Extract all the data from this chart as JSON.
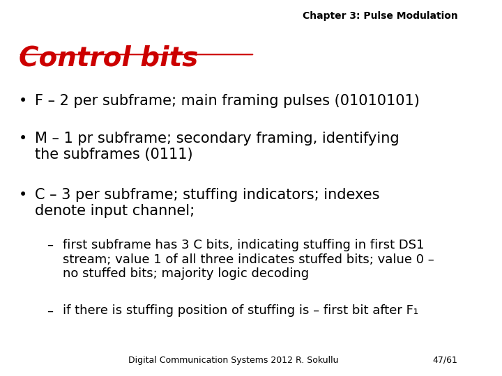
{
  "background_color": "#ffffff",
  "header_text": "Chapter 3: Pulse Modulation",
  "header_fontsize": 10,
  "header_color": "#000000",
  "title_text": "Control bits",
  "title_fontsize": 28,
  "title_color": "#cc0000",
  "title_bold": true,
  "title_italic": true,
  "title_underline": true,
  "bullet_fontsize": 15,
  "bullet_color": "#000000",
  "bullets": [
    "F – 2 per subframe; main framing pulses (01010101)",
    "M – 1 pr subframe; secondary framing, identifying\nthe subframes (0111)",
    "C – 3 per subframe; stuffing indicators; indexes\ndenote input channel;"
  ],
  "sub_bullets": [
    "first subframe has 3 C bits, indicating stuffing in first DS1\nstream; value 1 of all three indicates stuffed bits; value 0 –\nno stuffed bits; majority logic decoding",
    "if there is stuffing position of stuffing is – first bit after F₁"
  ],
  "sub_bullet_fontsize": 13,
  "footer_text": "Digital Communication Systems 2012 R. Sokullu",
  "footer_page": "47/61",
  "footer_fontsize": 9,
  "footer_color": "#000000"
}
